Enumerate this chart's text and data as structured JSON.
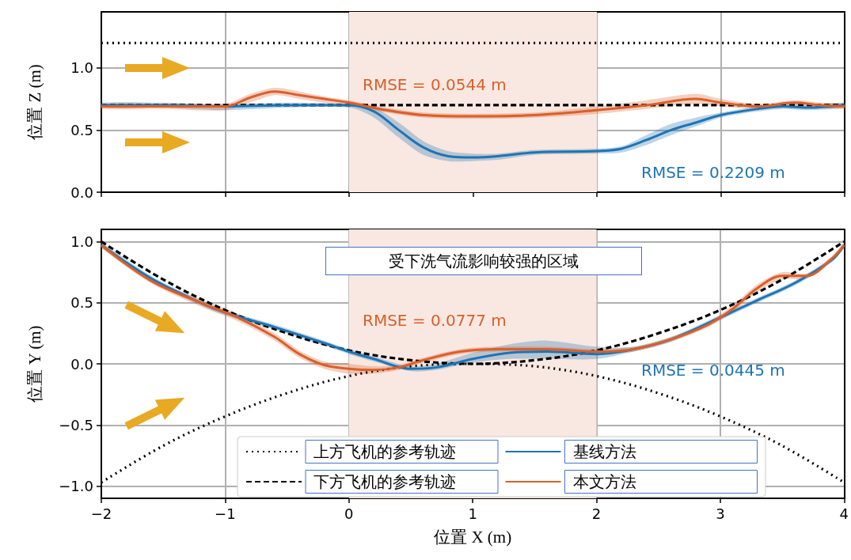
{
  "chart_data": [
    {
      "type": "line",
      "ylabel": "位置 Z (m)",
      "xlim": [
        -2,
        4
      ],
      "xticks": [
        -2,
        -1,
        0,
        1,
        2,
        3,
        4
      ],
      "ylim": [
        0,
        1.45
      ],
      "yticks": [
        {
          "value": 0,
          "label": "0.0"
        },
        0.5,
        {
          "value": 1,
          "label": "1.0"
        }
      ],
      "tick_labels": "y",
      "grid": true,
      "legend": false,
      "marker": "none",
      "bands": [
        {
          "axis": "x",
          "from": 0,
          "to": 2,
          "color": "#f9e8e1"
        }
      ],
      "annotations": [
        "RMSE = 0.0544 m",
        "RMSE = 0.2209 m"
      ],
      "series": [
        {
          "color": "#000000",
          "line_style": "dotted",
          "x": [
            -2,
            4
          ],
          "values": [
            1.2,
            1.2
          ]
        },
        {
          "color": "#000000",
          "line_style": "dashed",
          "x": [
            -2,
            4
          ],
          "values": [
            0.7,
            0.7
          ]
        },
        {
          "color": "#1f74b4",
          "line_style": "solid",
          "x": [
            -2,
            -1.5,
            -1,
            -0.5,
            0,
            0.2,
            0.4,
            0.6,
            0.8,
            1.0,
            1.2,
            1.5,
            2.0,
            2.2,
            2.4,
            2.6,
            2.8,
            3.0,
            3.3,
            3.5,
            3.7,
            4
          ],
          "values": [
            0.7,
            0.7,
            0.69,
            0.7,
            0.7,
            0.65,
            0.5,
            0.36,
            0.29,
            0.28,
            0.29,
            0.32,
            0.33,
            0.35,
            0.42,
            0.5,
            0.56,
            0.62,
            0.67,
            0.69,
            0.68,
            0.7
          ],
          "lower": [
            0.68,
            0.68,
            0.66,
            0.68,
            0.68,
            0.6,
            0.44,
            0.3,
            0.25,
            0.25,
            0.26,
            0.3,
            0.31,
            0.32,
            0.38,
            0.46,
            0.53,
            0.6,
            0.65,
            0.67,
            0.66,
            0.68
          ],
          "upper": [
            0.72,
            0.72,
            0.71,
            0.72,
            0.71,
            0.68,
            0.56,
            0.41,
            0.33,
            0.31,
            0.31,
            0.34,
            0.35,
            0.37,
            0.46,
            0.55,
            0.6,
            0.64,
            0.69,
            0.71,
            0.7,
            0.72
          ]
        },
        {
          "color": "#d9602a",
          "line_style": "solid",
          "x": [
            -2,
            -1.5,
            -1,
            -0.8,
            -0.6,
            -0.4,
            -0.2,
            0,
            0.3,
            0.6,
            1.0,
            1.5,
            2.0,
            2.4,
            2.8,
            3.0,
            3.3,
            3.6,
            3.8,
            4
          ],
          "values": [
            0.69,
            0.69,
            0.69,
            0.76,
            0.81,
            0.78,
            0.75,
            0.72,
            0.66,
            0.62,
            0.61,
            0.62,
            0.66,
            0.7,
            0.75,
            0.72,
            0.69,
            0.72,
            0.7,
            0.69
          ],
          "lower": [
            0.67,
            0.67,
            0.66,
            0.72,
            0.78,
            0.75,
            0.72,
            0.7,
            0.64,
            0.6,
            0.59,
            0.6,
            0.63,
            0.67,
            0.71,
            0.69,
            0.67,
            0.7,
            0.68,
            0.67
          ],
          "upper": [
            0.71,
            0.71,
            0.71,
            0.79,
            0.84,
            0.81,
            0.77,
            0.74,
            0.68,
            0.64,
            0.63,
            0.64,
            0.69,
            0.74,
            0.79,
            0.75,
            0.71,
            0.74,
            0.72,
            0.71
          ]
        }
      ]
    },
    {
      "type": "line",
      "xlabel": "位置 X (m)",
      "ylabel": "位置 Y (m)",
      "xlim": [
        -2,
        4
      ],
      "xticks": [
        {
          "value": -2,
          "label": "−2"
        },
        {
          "value": -1,
          "label": "−1"
        },
        0,
        1,
        2,
        3,
        4
      ],
      "ylim": [
        -1.1,
        1.1
      ],
      "yticks": [
        {
          "value": -1,
          "label": "−1.0"
        },
        {
          "value": -0.5,
          "label": "−0.5"
        },
        {
          "value": 0,
          "label": "0.0"
        },
        0.5,
        {
          "value": 1,
          "label": "1.0"
        }
      ],
      "grid": true,
      "legend": "bottom",
      "marker": "none",
      "bands": [
        {
          "axis": "x",
          "from": 0,
          "to": 2,
          "label": "受下洗气流影响较强的区域",
          "color": "#f9e8e1"
        }
      ],
      "annotations": [
        "RMSE = 0.0777 m",
        "RMSE = 0.0445 m"
      ],
      "series": [
        {
          "name": "上方飞机的参考轨迹",
          "color": "#000000",
          "line_style": "dotted",
          "x": [
            -2,
            -1.5,
            -1,
            -0.5,
            0,
            0.5,
            1,
            1.5,
            2,
            2.5,
            3,
            3.5,
            4
          ],
          "values": [
            -0.97,
            -0.67,
            -0.43,
            -0.24,
            -0.1,
            -0.02,
            0,
            -0.02,
            -0.1,
            -0.24,
            -0.43,
            -0.67,
            -0.97
          ]
        },
        {
          "name": "下方飞机的参考轨迹",
          "color": "#000000",
          "line_style": "dashed",
          "x": [
            -2,
            -1.5,
            -1,
            -0.5,
            0,
            0.5,
            1,
            1.5,
            2,
            2.5,
            3,
            3.5,
            4
          ],
          "values": [
            1.0,
            0.69,
            0.44,
            0.25,
            0.11,
            0.03,
            0,
            0.03,
            0.11,
            0.25,
            0.44,
            0.69,
            1.0
          ]
        },
        {
          "name": "基线方法",
          "color": "#1f74b4",
          "line_style": "solid",
          "x": [
            -2,
            -1.6,
            -1.2,
            -1,
            -0.6,
            -0.2,
            0,
            0.2,
            0.5,
            0.7,
            1.0,
            1.3,
            1.6,
            2.0,
            2.3,
            2.6,
            3.0,
            3.3,
            3.6,
            3.9,
            4
          ],
          "values": [
            0.97,
            0.7,
            0.5,
            0.42,
            0.3,
            0.17,
            0.1,
            0.04,
            -0.04,
            -0.03,
            0.04,
            0.09,
            0.1,
            0.08,
            0.12,
            0.2,
            0.38,
            0.52,
            0.66,
            0.85,
            0.97
          ],
          "lower": [
            0.95,
            0.68,
            0.48,
            0.4,
            0.28,
            0.15,
            0.08,
            0.02,
            -0.06,
            -0.05,
            0.01,
            0.04,
            0.04,
            0.04,
            0.1,
            0.18,
            0.36,
            0.5,
            0.64,
            0.83,
            0.95
          ],
          "upper": [
            0.99,
            0.72,
            0.52,
            0.44,
            0.32,
            0.19,
            0.12,
            0.06,
            -0.02,
            0,
            0.09,
            0.16,
            0.19,
            0.14,
            0.14,
            0.22,
            0.4,
            0.54,
            0.68,
            0.87,
            0.99
          ]
        },
        {
          "name": "本文方法",
          "color": "#d9602a",
          "line_style": "solid",
          "x": [
            -2,
            -1.6,
            -1.2,
            -0.9,
            -0.6,
            -0.4,
            -0.2,
            0,
            0.2,
            0.4,
            0.6,
            0.9,
            1.2,
            1.6,
            2.0,
            2.3,
            2.6,
            2.9,
            3.1,
            3.3,
            3.5,
            3.7,
            3.9,
            4
          ],
          "values": [
            0.97,
            0.68,
            0.5,
            0.38,
            0.22,
            0.08,
            -0.01,
            -0.04,
            -0.05,
            -0.03,
            0.03,
            0.1,
            0.12,
            0.12,
            0.1,
            0.12,
            0.2,
            0.32,
            0.45,
            0.62,
            0.72,
            0.72,
            0.86,
            0.97
          ],
          "lower": [
            0.95,
            0.66,
            0.47,
            0.35,
            0.19,
            0.05,
            -0.04,
            -0.08,
            -0.08,
            -0.05,
            0.01,
            0.08,
            0.1,
            0.1,
            0.08,
            0.1,
            0.18,
            0.3,
            0.42,
            0.59,
            0.69,
            0.7,
            0.84,
            0.95
          ],
          "upper": [
            0.99,
            0.7,
            0.53,
            0.41,
            0.25,
            0.11,
            0.02,
            0,
            -0.02,
            -0.01,
            0.05,
            0.12,
            0.14,
            0.14,
            0.12,
            0.14,
            0.22,
            0.34,
            0.48,
            0.65,
            0.75,
            0.74,
            0.88,
            0.99
          ]
        }
      ]
    }
  ]
}
